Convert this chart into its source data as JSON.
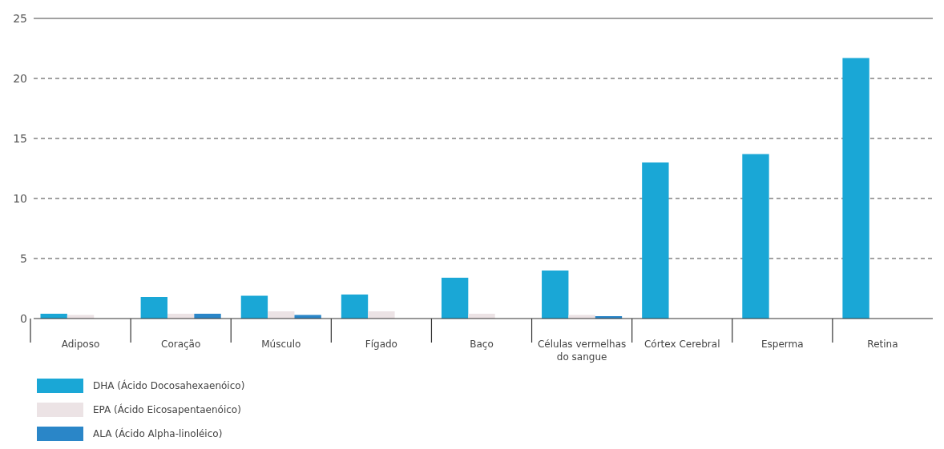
{
  "chart_data": {
    "type": "bar",
    "categories": [
      "Adiposo",
      "Coração",
      "Músculo",
      "Fígado",
      "Baço",
      "Células vermelhas do sangue",
      "Córtex Cerebral",
      "Esperma",
      "Retina"
    ],
    "series": [
      {
        "name": "DHA (Ácido Docosahexaenóico)",
        "color": "#1aa7d6",
        "values": [
          0.4,
          1.8,
          1.9,
          2.0,
          3.4,
          4.0,
          13.0,
          13.7,
          21.7
        ]
      },
      {
        "name": "EPA (Ácido Eicosapentaenóico)",
        "color": "#ece3e5",
        "values": [
          0.3,
          0.4,
          0.6,
          0.6,
          0.4,
          0.3,
          null,
          null,
          null
        ]
      },
      {
        "name": "ALA (Ácido Alpha-linoléico)",
        "color": "#2a86c8",
        "values": [
          null,
          0.4,
          0.3,
          null,
          null,
          0.2,
          null,
          null,
          null
        ]
      }
    ],
    "ylim": [
      0,
      25
    ],
    "yticks": [
      0,
      5,
      10,
      15,
      20,
      25
    ],
    "grid": "y",
    "legend": "bottom left"
  }
}
